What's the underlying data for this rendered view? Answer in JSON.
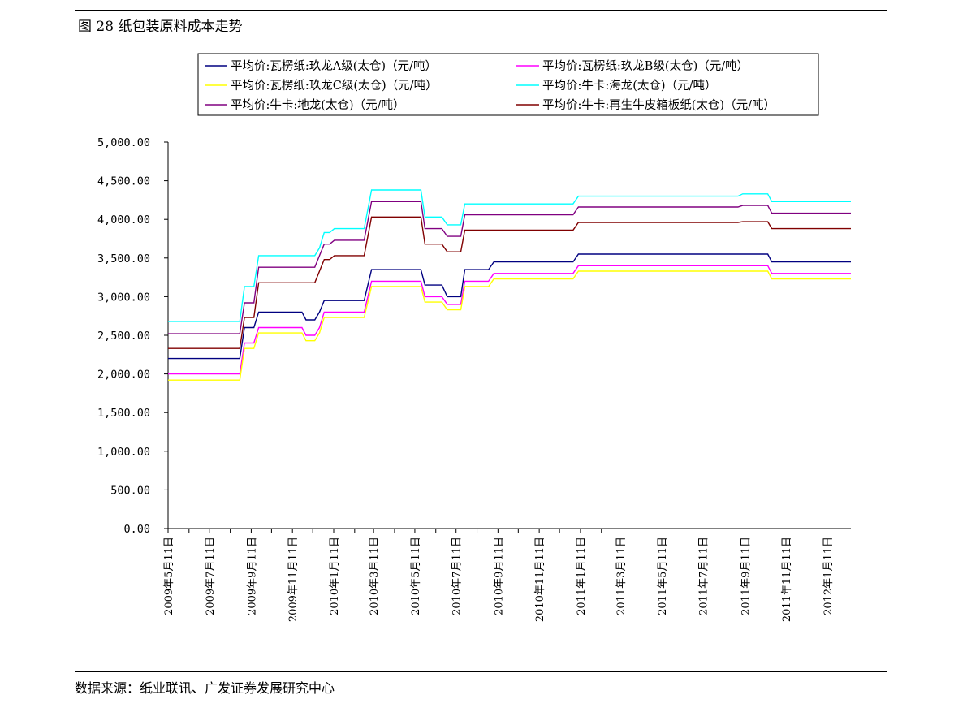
{
  "figure": {
    "title": "图 28 纸包装原料成本走势",
    "source": "数据来源：纸业联讯、广发证券发展研究中心"
  },
  "chart_data": {
    "type": "line",
    "title": "",
    "xlabel": "",
    "ylabel": "",
    "ylim": [
      0,
      5000
    ],
    "yticks": [
      "0.00",
      "500.00",
      "1,000.00",
      "1,500.00",
      "2,000.00",
      "2,500.00",
      "3,000.00",
      "3,500.00",
      "4,000.00",
      "4,500.00",
      "5,000.00"
    ],
    "x_tick_labels": [
      "2009年5月11日",
      "2009年7月11日",
      "2009年9月11日",
      "2009年11月11日",
      "2010年1月11日",
      "2010年3月11日",
      "2010年5月11日",
      "2010年7月11日",
      "2010年9月11日",
      "2010年11月11日",
      "2011年1月11日",
      "2011年3月11日",
      "2011年5月11日",
      "2011年7月11日",
      "2011年9月11日",
      "2011年11月11日",
      "2012年1月11日"
    ],
    "x_range": [
      "2009-05-11",
      "2012-02-15"
    ],
    "legend_position": "top",
    "series": [
      {
        "name": "平均价:瓦楞纸:玖龙A级(太仓)（元/吨）",
        "color": "#000080",
        "points": [
          [
            "2009-05-11",
            2200
          ],
          [
            "2009-08-25",
            2200
          ],
          [
            "2009-09-01",
            2600
          ],
          [
            "2009-09-15",
            2600
          ],
          [
            "2009-09-22",
            2800
          ],
          [
            "2009-11-25",
            2800
          ],
          [
            "2009-12-01",
            2700
          ],
          [
            "2009-12-14",
            2700
          ],
          [
            "2009-12-21",
            2800
          ],
          [
            "2009-12-28",
            2950
          ],
          [
            "2010-02-25",
            2950
          ],
          [
            "2010-03-08",
            3350
          ],
          [
            "2010-05-20",
            3350
          ],
          [
            "2010-05-26",
            3150
          ],
          [
            "2010-06-20",
            3150
          ],
          [
            "2010-06-28",
            3000
          ],
          [
            "2010-07-18",
            3000
          ],
          [
            "2010-07-24",
            3350
          ],
          [
            "2010-08-28",
            3350
          ],
          [
            "2010-09-05",
            3450
          ],
          [
            "2010-12-31",
            3450
          ],
          [
            "2011-01-08",
            3550
          ],
          [
            "2011-10-15",
            3550
          ],
          [
            "2011-10-21",
            3450
          ],
          [
            "2012-02-15",
            3450
          ]
        ]
      },
      {
        "name": "平均价:瓦楞纸:玖龙B级(太仓)（元/吨）",
        "color": "#ff00ff",
        "points": [
          [
            "2009-05-11",
            2000
          ],
          [
            "2009-08-25",
            2000
          ],
          [
            "2009-09-01",
            2400
          ],
          [
            "2009-09-15",
            2400
          ],
          [
            "2009-09-22",
            2600
          ],
          [
            "2009-11-25",
            2600
          ],
          [
            "2009-12-01",
            2500
          ],
          [
            "2009-12-14",
            2500
          ],
          [
            "2009-12-21",
            2600
          ],
          [
            "2009-12-28",
            2800
          ],
          [
            "2010-02-25",
            2800
          ],
          [
            "2010-03-08",
            3200
          ],
          [
            "2010-05-20",
            3200
          ],
          [
            "2010-05-26",
            3000
          ],
          [
            "2010-06-20",
            3000
          ],
          [
            "2010-06-28",
            2900
          ],
          [
            "2010-07-18",
            2900
          ],
          [
            "2010-07-24",
            3200
          ],
          [
            "2010-08-28",
            3200
          ],
          [
            "2010-09-05",
            3300
          ],
          [
            "2010-12-31",
            3300
          ],
          [
            "2011-01-08",
            3400
          ],
          [
            "2011-10-15",
            3400
          ],
          [
            "2011-10-21",
            3300
          ],
          [
            "2012-02-15",
            3300
          ]
        ]
      },
      {
        "name": "平均价:瓦楞纸:玖龙C级(太仓)（元/吨）",
        "color": "#ffff00",
        "points": [
          [
            "2009-05-11",
            1920
          ],
          [
            "2009-08-25",
            1920
          ],
          [
            "2009-09-01",
            2330
          ],
          [
            "2009-09-15",
            2330
          ],
          [
            "2009-09-22",
            2530
          ],
          [
            "2009-11-25",
            2530
          ],
          [
            "2009-12-01",
            2430
          ],
          [
            "2009-12-14",
            2430
          ],
          [
            "2009-12-21",
            2530
          ],
          [
            "2009-12-28",
            2730
          ],
          [
            "2010-02-25",
            2730
          ],
          [
            "2010-03-08",
            3130
          ],
          [
            "2010-05-20",
            3130
          ],
          [
            "2010-05-26",
            2930
          ],
          [
            "2010-06-20",
            2930
          ],
          [
            "2010-06-28",
            2830
          ],
          [
            "2010-07-18",
            2830
          ],
          [
            "2010-07-24",
            3130
          ],
          [
            "2010-08-28",
            3130
          ],
          [
            "2010-09-05",
            3230
          ],
          [
            "2010-12-31",
            3230
          ],
          [
            "2011-01-08",
            3330
          ],
          [
            "2011-10-15",
            3330
          ],
          [
            "2011-10-21",
            3230
          ],
          [
            "2012-02-15",
            3230
          ]
        ]
      },
      {
        "name": "平均价:牛卡:海龙(太仓)（元/吨）",
        "color": "#00ffff",
        "points": [
          [
            "2009-05-11",
            2680
          ],
          [
            "2009-08-25",
            2680
          ],
          [
            "2009-09-01",
            3130
          ],
          [
            "2009-09-15",
            3130
          ],
          [
            "2009-09-22",
            3530
          ],
          [
            "2009-12-14",
            3530
          ],
          [
            "2009-12-21",
            3630
          ],
          [
            "2009-12-28",
            3830
          ],
          [
            "2010-01-05",
            3830
          ],
          [
            "2010-01-12",
            3880
          ],
          [
            "2010-02-25",
            3880
          ],
          [
            "2010-03-08",
            4380
          ],
          [
            "2010-05-20",
            4380
          ],
          [
            "2010-05-26",
            4030
          ],
          [
            "2010-06-20",
            4030
          ],
          [
            "2010-06-28",
            3930
          ],
          [
            "2010-07-18",
            3930
          ],
          [
            "2010-07-24",
            4200
          ],
          [
            "2010-12-31",
            4200
          ],
          [
            "2011-01-08",
            4300
          ],
          [
            "2011-09-01",
            4300
          ],
          [
            "2011-09-08",
            4330
          ],
          [
            "2011-10-15",
            4330
          ],
          [
            "2011-10-21",
            4230
          ],
          [
            "2012-02-15",
            4230
          ]
        ]
      },
      {
        "name": "平均价:牛卡:地龙(太仓)（元/吨）",
        "color": "#800080",
        "points": [
          [
            "2009-05-11",
            2520
          ],
          [
            "2009-08-25",
            2520
          ],
          [
            "2009-09-01",
            2920
          ],
          [
            "2009-09-15",
            2920
          ],
          [
            "2009-09-22",
            3380
          ],
          [
            "2009-12-14",
            3380
          ],
          [
            "2009-12-21",
            3530
          ],
          [
            "2009-12-28",
            3680
          ],
          [
            "2010-01-05",
            3680
          ],
          [
            "2010-01-12",
            3730
          ],
          [
            "2010-02-25",
            3730
          ],
          [
            "2010-03-08",
            4230
          ],
          [
            "2010-05-20",
            4230
          ],
          [
            "2010-05-26",
            3880
          ],
          [
            "2010-06-20",
            3880
          ],
          [
            "2010-06-28",
            3780
          ],
          [
            "2010-07-18",
            3780
          ],
          [
            "2010-07-24",
            4060
          ],
          [
            "2010-12-31",
            4060
          ],
          [
            "2011-01-08",
            4160
          ],
          [
            "2011-09-01",
            4160
          ],
          [
            "2011-09-08",
            4180
          ],
          [
            "2011-10-15",
            4180
          ],
          [
            "2011-10-21",
            4080
          ],
          [
            "2012-02-15",
            4080
          ]
        ]
      },
      {
        "name": "平均价:牛卡:再生牛皮箱板纸(太仓)（元/吨）",
        "color": "#800000",
        "points": [
          [
            "2009-05-11",
            2330
          ],
          [
            "2009-08-25",
            2330
          ],
          [
            "2009-09-01",
            2730
          ],
          [
            "2009-09-15",
            2730
          ],
          [
            "2009-09-22",
            3180
          ],
          [
            "2009-12-14",
            3180
          ],
          [
            "2009-12-21",
            3330
          ],
          [
            "2009-12-28",
            3480
          ],
          [
            "2010-01-05",
            3480
          ],
          [
            "2010-01-12",
            3530
          ],
          [
            "2010-02-25",
            3530
          ],
          [
            "2010-03-08",
            4030
          ],
          [
            "2010-05-20",
            4030
          ],
          [
            "2010-05-26",
            3680
          ],
          [
            "2010-06-20",
            3680
          ],
          [
            "2010-06-28",
            3580
          ],
          [
            "2010-07-18",
            3580
          ],
          [
            "2010-07-24",
            3860
          ],
          [
            "2010-12-31",
            3860
          ],
          [
            "2011-01-08",
            3960
          ],
          [
            "2011-09-01",
            3960
          ],
          [
            "2011-09-08",
            3970
          ],
          [
            "2011-10-15",
            3970
          ],
          [
            "2011-10-21",
            3880
          ],
          [
            "2012-02-15",
            3880
          ]
        ]
      }
    ]
  }
}
